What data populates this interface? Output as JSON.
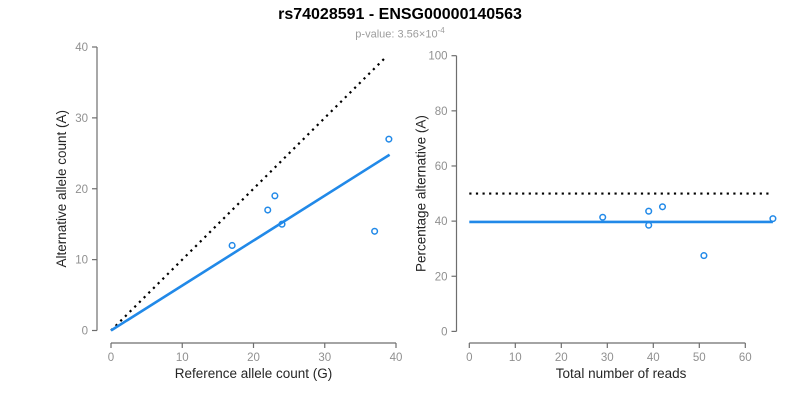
{
  "figure": {
    "title": "rs74028591 - ENSG00000140563",
    "subtitle_label": "p-value: 3.56×10",
    "subtitle_exponent": "-4"
  },
  "colors": {
    "accent_blue": "#2189e8",
    "dotted_black": "#000000",
    "axis_line": "#6e6e6e",
    "tick_label": "#909090",
    "axis_title": "#262626"
  },
  "chart_data": [
    {
      "type": "scatter",
      "name": "allele-count-scatter",
      "xlabel": "Reference allele count (G)",
      "ylabel": "Alternative allele count (A)",
      "xlim": [
        0,
        40
      ],
      "ylim": [
        0,
        40
      ],
      "xticks": [
        0,
        10,
        20,
        30,
        40
      ],
      "yticks": [
        0,
        10,
        20,
        30,
        40
      ],
      "grid": false,
      "legend": "none",
      "points": [
        [
          17,
          12
        ],
        [
          22,
          17
        ],
        [
          23,
          19
        ],
        [
          24,
          15
        ],
        [
          37,
          14
        ],
        [
          39,
          27
        ]
      ],
      "lines": [
        {
          "name": "identity-line",
          "role": "y=x reference",
          "style": "dotted",
          "color": "#000000",
          "width": 2.2,
          "x1": 0,
          "y1": 0,
          "x2": 38.7,
          "y2": 38.7
        },
        {
          "name": "regression-line",
          "role": "allelic ratio fit",
          "style": "solid",
          "color": "#2189e8",
          "width": 2.6,
          "x1": 0,
          "y1": 0,
          "x2": 39.1,
          "y2": 24.8
        }
      ]
    },
    {
      "type": "scatter",
      "name": "percentage-alternative-scatter",
      "xlabel": "Total number of reads",
      "ylabel": "Percentage alternative (A)",
      "xlim": [
        0,
        66
      ],
      "ylim": [
        0,
        100
      ],
      "xticks": [
        0,
        10,
        20,
        30,
        40,
        50,
        60
      ],
      "yticks": [
        0,
        20,
        40,
        60,
        80,
        100
      ],
      "grid": false,
      "legend": "none",
      "points": [
        [
          29,
          41.4
        ],
        [
          39,
          43.6
        ],
        [
          39,
          38.5
        ],
        [
          42,
          45.2
        ],
        [
          51,
          27.5
        ],
        [
          66,
          40.9
        ]
      ],
      "lines": [
        {
          "name": "fifty-percent-line",
          "role": "50% reference",
          "style": "dotted",
          "color": "#000000",
          "width": 2.2,
          "x1": 0,
          "y1": 50,
          "x2": 66,
          "y2": 50
        },
        {
          "name": "mean-percentage-line",
          "role": "mean alternative fraction",
          "style": "solid",
          "color": "#2189e8",
          "width": 2.6,
          "x1": 0,
          "y1": 39.7,
          "x2": 66,
          "y2": 39.7
        }
      ]
    }
  ]
}
